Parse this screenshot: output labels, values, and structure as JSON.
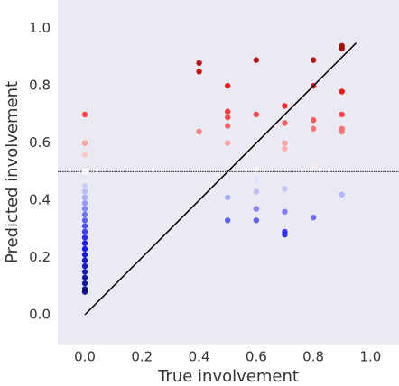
{
  "chart_data": {
    "type": "scatter",
    "x_label": "True involvement",
    "y_label": "Predicted involvement",
    "xlim": [
      -0.095,
      1.1
    ],
    "ylim": [
      -0.104,
      1.1
    ],
    "xticks": [
      {
        "value": 0,
        "label": "0.0"
      },
      0.2,
      0.4,
      0.6,
      0.8,
      {
        "value": 1,
        "label": "1.0"
      }
    ],
    "yticks": [
      {
        "value": 0,
        "label": "0.0"
      },
      0.2,
      0.4,
      0.6,
      0.8,
      {
        "value": 1,
        "label": "1.0"
      }
    ],
    "colormap": "seismic",
    "background": "#eaeaf2",
    "grid": false,
    "diagonal": {
      "from": 0,
      "to": 0.95,
      "color": "#000000"
    },
    "hline": {
      "value": 0.5,
      "color": "#444444"
    },
    "x": [
      0,
      0,
      0,
      0,
      0,
      0,
      0,
      0,
      0,
      0,
      0,
      0,
      0,
      0,
      0,
      0,
      0,
      0,
      0,
      0,
      0,
      0,
      0,
      0,
      0.4,
      0.4,
      0.4,
      0.5,
      0.5,
      0.5,
      0.5,
      0.5,
      0.5,
      0.5,
      0.6,
      0.6,
      0.6,
      0.6,
      0.6,
      0.6,
      0.6,
      0.7,
      0.7,
      0.7,
      0.7,
      0.7,
      0.7,
      0.7,
      0.7,
      0.8,
      0.8,
      0.8,
      0.8,
      0.8,
      0.8,
      0.9,
      0.9,
      0.9,
      0.9,
      0.9,
      0.9,
      0.9
    ],
    "values": [
      0.7,
      0.6,
      0.56,
      0.5,
      0.45,
      0.43,
      0.41,
      0.39,
      0.37,
      0.35,
      0.33,
      0.31,
      0.29,
      0.27,
      0.25,
      0.23,
      0.21,
      0.19,
      0.17,
      0.15,
      0.13,
      0.11,
      0.09,
      0.08,
      0.88,
      0.85,
      0.64,
      0.8,
      0.71,
      0.69,
      0.66,
      0.6,
      0.41,
      0.33,
      0.89,
      0.7,
      0.51,
      0.47,
      0.43,
      0.37,
      0.33,
      0.73,
      0.67,
      0.6,
      0.58,
      0.44,
      0.36,
      0.29,
      0.28,
      0.89,
      0.8,
      0.68,
      0.65,
      0.52,
      0.34,
      0.94,
      0.93,
      0.78,
      0.7,
      0.65,
      0.64,
      0.42
    ]
  }
}
